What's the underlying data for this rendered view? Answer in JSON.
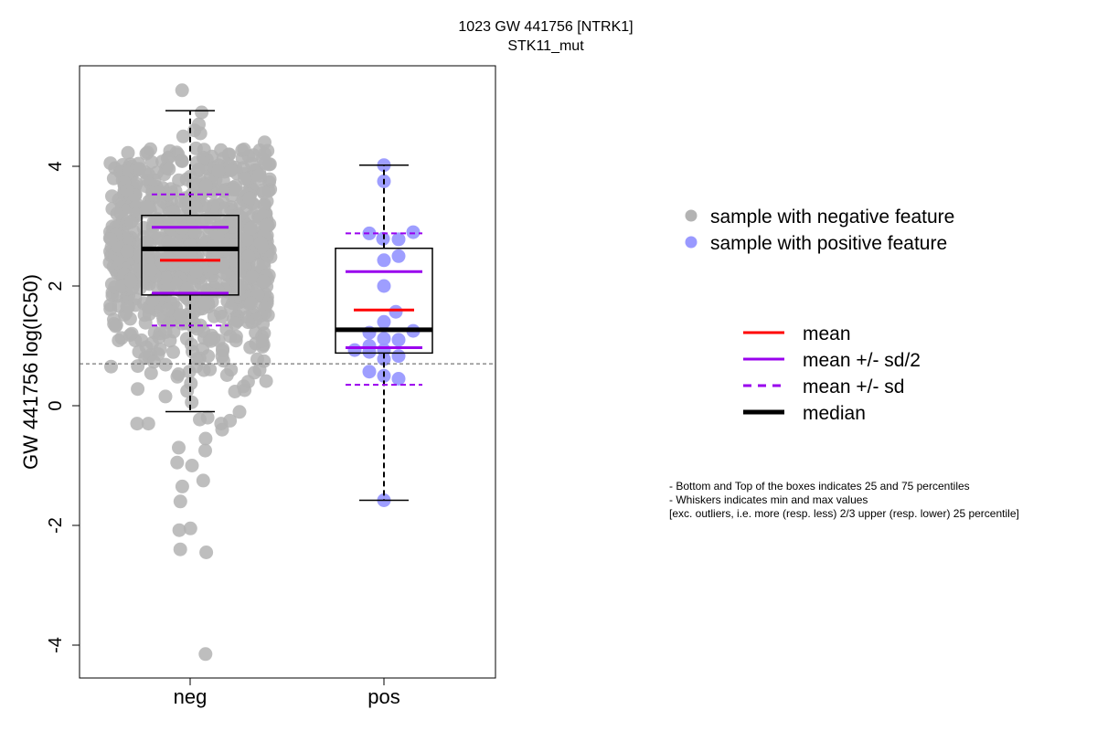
{
  "chart_data": {
    "type": "box",
    "title": "1023 GW 441756 [NTRK1]",
    "subtitle": "STK11_mut",
    "ylabel": "GW 441756 log(IC50)",
    "xlabel": "",
    "categories": [
      "neg",
      "pos"
    ],
    "ylim": [
      -4.5,
      5.6
    ],
    "yticks": [
      -4,
      -2,
      0,
      2,
      4
    ],
    "ytick_labels": [
      "-4",
      "-2",
      "0",
      "2",
      "4"
    ],
    "reference_line": 0.7,
    "grid": false,
    "groups": [
      {
        "name": "neg",
        "color": "#b3b3b3",
        "q1": 1.85,
        "median": 2.62,
        "q3": 3.18,
        "whisker_low": -0.1,
        "whisker_high": 4.93,
        "mean": 2.43,
        "mean_minus_half_sd": 1.88,
        "mean_plus_half_sd": 2.98,
        "mean_minus_sd": 1.34,
        "mean_plus_sd": 3.53,
        "outliers": [
          5.27,
          -4.15
        ],
        "points_summary": {
          "count": 900,
          "distribution": "dense between 0.4 and 4.3, sparse tail to -2.5"
        }
      },
      {
        "name": "pos",
        "color": "#9999ff",
        "q1": 0.88,
        "median": 1.27,
        "q3": 2.63,
        "whisker_low": -1.58,
        "whisker_high": 4.02,
        "mean": 1.6,
        "mean_minus_half_sd": 0.97,
        "mean_plus_half_sd": 2.24,
        "mean_minus_sd": 0.35,
        "mean_plus_sd": 2.88,
        "points": [
          4.02,
          3.75,
          2.9,
          2.88,
          2.79,
          2.78,
          2.5,
          2.43,
          2.0,
          1.57,
          1.4,
          1.25,
          1.22,
          1.12,
          1.1,
          1.0,
          0.93,
          0.93,
          0.9,
          0.83,
          0.78,
          0.57,
          0.5,
          0.45,
          -1.58
        ]
      }
    ],
    "legend_points": [
      {
        "label": "sample with negative feature",
        "color": "#b3b3b3"
      },
      {
        "label": "sample with positive feature",
        "color": "#9999ff"
      }
    ],
    "legend_lines": [
      {
        "label": "mean",
        "color": "#ff0000",
        "style": "solid"
      },
      {
        "label": "mean +/- sd/2",
        "color": "#9900ee",
        "style": "solid"
      },
      {
        "label": "mean +/- sd",
        "color": "#9900ee",
        "style": "dashed"
      },
      {
        "label": "median",
        "color": "#000000",
        "style": "thick"
      }
    ],
    "legend_position": "right"
  },
  "footnote": {
    "line1": "- Bottom and Top of the boxes indicates 25 and 75 percentiles",
    "line2": "- Whiskers indicates min and max values",
    "line3": "[exc. outliers, i.e. more (resp. less) 2/3 upper (resp. lower) 25 percentile]"
  }
}
